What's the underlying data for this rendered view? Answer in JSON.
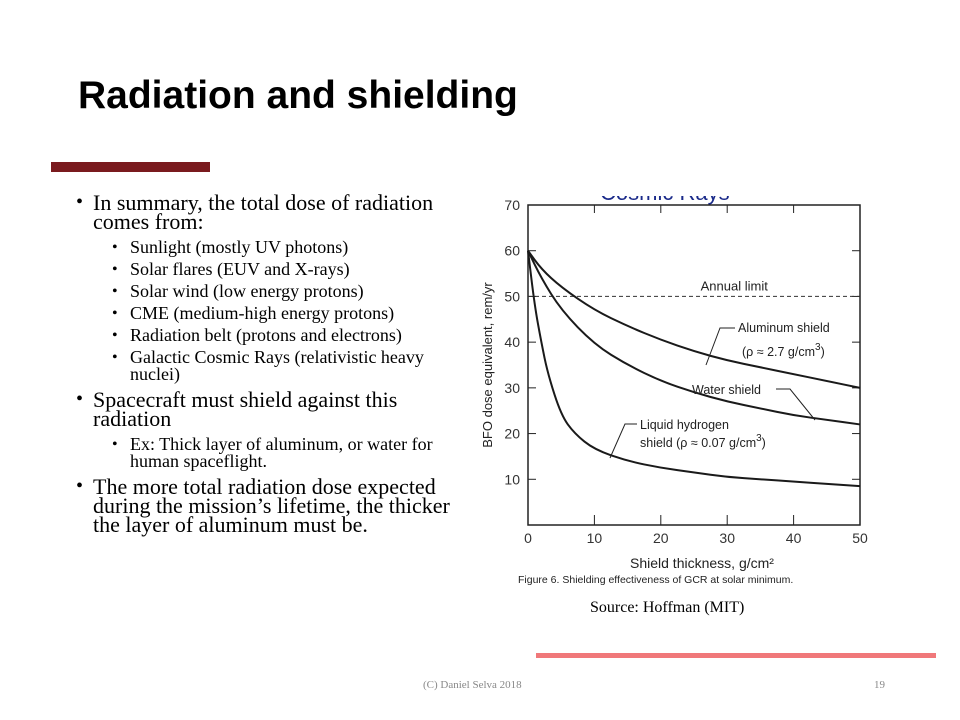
{
  "slide": {
    "title": "Radiation and shielding",
    "source": "Source: Hoffman (MIT)",
    "footer_left": "(C) Daniel Selva 2018",
    "footer_right": "19"
  },
  "bullets": [
    {
      "text": "In summary, the total dose of radiation comes from:",
      "sub": [
        "Sunlight (mostly UV photons)",
        "Solar flares (EUV and X-rays)",
        "Solar wind (low energy protons)",
        "CME (medium-high energy protons)",
        "Radiation belt (protons and electrons)",
        "Galactic Cosmic Rays (relativistic heavy nuclei)"
      ]
    },
    {
      "text": "Spacecraft must shield against this radiation",
      "sub": [
        "Ex: Thick layer of aluminum, or water for human spaceflight."
      ]
    },
    {
      "text": "The more total radiation dose expected during the mission’s lifetime, the thicker the layer of aluminum must be.",
      "sub": []
    }
  ],
  "chart_data": {
    "type": "line",
    "partial_header": "Cosmic Rays",
    "xlabel": "Shield thickness, g/cm²",
    "ylabel": "BFO dose equivalent, rem/yr",
    "caption": "Figure 6. Shielding effectiveness of GCR at solar minimum.",
    "xlim": [
      0,
      50
    ],
    "ylim": [
      0,
      70
    ],
    "x_ticks": [
      0,
      10,
      20,
      30,
      40,
      50
    ],
    "y_ticks": [
      10,
      20,
      30,
      40,
      50,
      60,
      70
    ],
    "reference_line": {
      "label": "Annual limit",
      "y": 50
    },
    "series": [
      {
        "name": "Aluminum shield (ρ ≈ 2.7 g/cm³)",
        "x": [
          0,
          2,
          5,
          10,
          15,
          20,
          25,
          30,
          35,
          40,
          45,
          50
        ],
        "y": [
          60,
          56,
          52,
          47,
          43.5,
          40.5,
          38,
          36,
          34.5,
          33,
          31.5,
          30
        ]
      },
      {
        "name": "Water shield",
        "x": [
          0,
          2,
          5,
          10,
          15,
          20,
          25,
          30,
          35,
          40,
          45,
          50
        ],
        "y": [
          60,
          54,
          47,
          39.5,
          35,
          31.5,
          29,
          27,
          25.5,
          24,
          23,
          22
        ]
      },
      {
        "name": "Liquid hydrogen shield (ρ ≈ 0.07 g/cm³)",
        "x": [
          0,
          1,
          2,
          3,
          5,
          7,
          10,
          15,
          20,
          25,
          30,
          35,
          40,
          45,
          50
        ],
        "y": [
          60,
          48,
          40,
          33,
          24,
          20,
          16.5,
          14,
          12.5,
          11.5,
          10.5,
          10,
          9.5,
          9,
          8.5
        ]
      }
    ],
    "labels": {
      "aluminum": {
        "line1": "Aluminum shield",
        "line2": "(ρ ≈ 2.7 g/cm",
        "sup": "3",
        "close": ")"
      },
      "water": {
        "line1": "Water shield"
      },
      "hydrogen": {
        "line1": "Liquid hydrogen",
        "line2": "shield  (ρ ≈ 0.07 g/cm",
        "sup": "3",
        "close": ")"
      }
    }
  }
}
